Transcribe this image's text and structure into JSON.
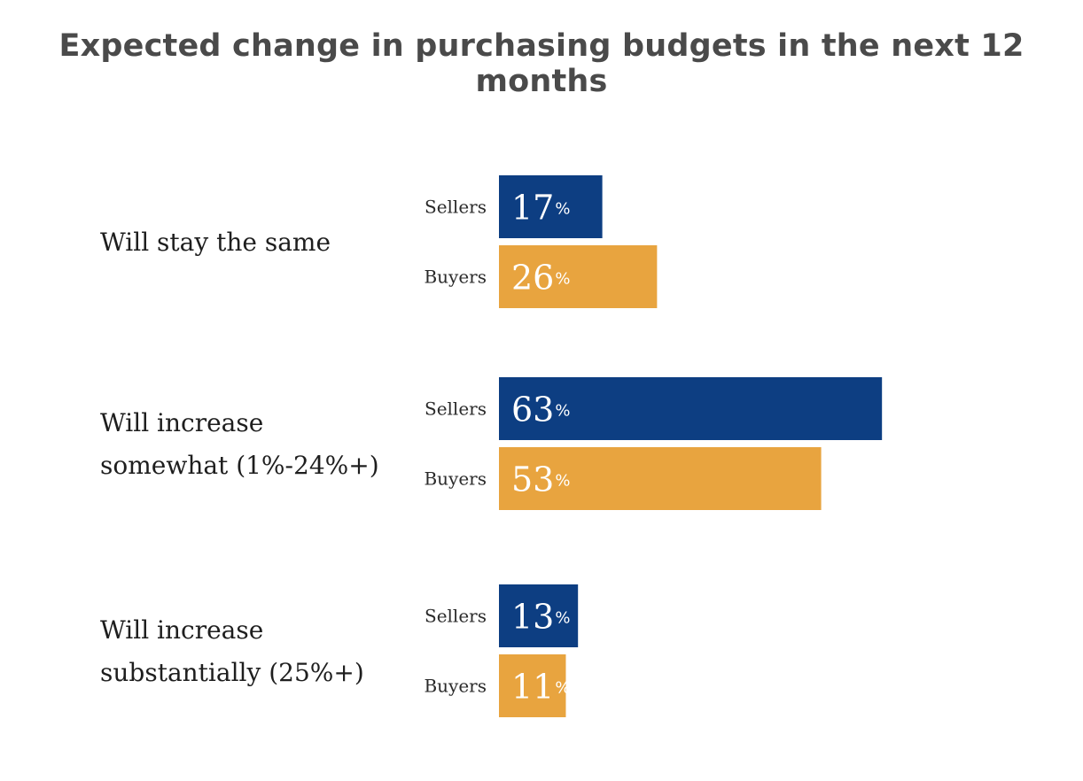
{
  "chart_data": {
    "type": "bar",
    "orientation": "horizontal",
    "title": "Expected change in purchasing budgets in the next 12 months",
    "categories": [
      [
        "Will stay the same"
      ],
      [
        "Will increase",
        "somewhat (1%-24%+)"
      ],
      [
        "Will increase",
        "substantially (25%+)"
      ]
    ],
    "series": [
      {
        "name": "Sellers",
        "color": "#0d3e82",
        "values": [
          17,
          63,
          13
        ]
      },
      {
        "name": "Buyers",
        "color": "#e8a43f",
        "values": [
          26,
          53,
          11
        ]
      }
    ],
    "value_suffix": "%",
    "xlim": [
      0,
      100
    ],
    "grid": false,
    "legend": "none"
  }
}
